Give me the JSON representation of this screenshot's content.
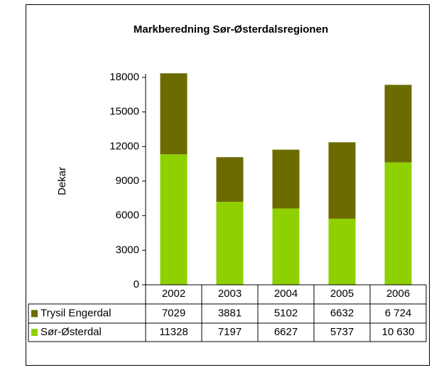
{
  "chart_data": {
    "type": "stacked-bar",
    "title": "Markberedning Sør-Østerdalsregionen",
    "y_label": "Dekar",
    "categories": [
      "2002",
      "2003",
      "2004",
      "2005",
      "2006"
    ],
    "series": [
      {
        "name": "Trysil Engerdal",
        "color": "#6b6b00",
        "values": [
          7029,
          3881,
          5102,
          6632,
          6724
        ],
        "value_labels": [
          "7029",
          "3881",
          "5102",
          "6632",
          "6 724"
        ]
      },
      {
        "name": "Sør-Østerdal",
        "color": "#8fd000",
        "values": [
          11328,
          7197,
          6627,
          5737,
          10630
        ],
        "value_labels": [
          "11328",
          "7197",
          "6627",
          "5737",
          "10 630"
        ]
      }
    ],
    "ylim": [
      0,
      18000
    ],
    "yticks": [
      0,
      3000,
      6000,
      9000,
      12000,
      15000,
      18000
    ],
    "grid": false
  }
}
